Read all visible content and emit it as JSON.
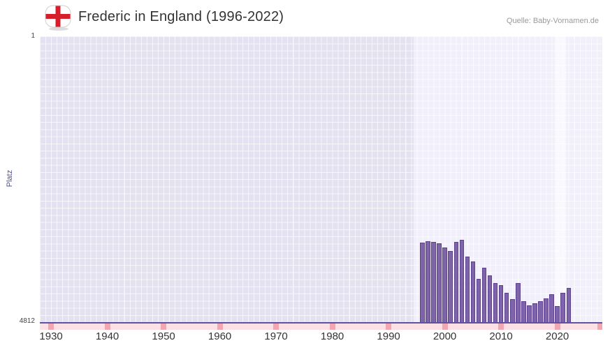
{
  "header": {
    "title": "Frederic in England (1996-2022)",
    "source": "Quelle: Baby-Vornamen.de"
  },
  "colors": {
    "flag_red": "#d5202c",
    "bar_fill": "#7f64aa",
    "bar_border": "#5b4190",
    "band_base": "#e4e2f0",
    "band_active": "#f1effa",
    "grid_line": "rgba(255,255,255,0.65)",
    "axis_line": "#5f51a3",
    "strip_bg": "#fbe0e6",
    "strip_mark": "#f2a6b2",
    "title_color": "#333333",
    "source_color": "#9a9a9a",
    "ylabel_color": "#4f4f93"
  },
  "chart_data": {
    "type": "bar",
    "title": "Frederic in England (1996-2022)",
    "source": "Quelle: Baby-Vornamen.de",
    "xlabel": "",
    "ylabel": "Platz",
    "legend": false,
    "grid": true,
    "y_axis": {
      "min": 1,
      "max": 4812,
      "inverted": true,
      "top_label": "1",
      "bottom_label": "4812"
    },
    "x_domain": [
      1928,
      2028
    ],
    "x_ticks": [
      1930,
      1940,
      1950,
      1960,
      1970,
      1980,
      1990,
      2000,
      2010,
      2020
    ],
    "active_period_band": {
      "from": 1994.5,
      "to": 2028
    },
    "recent_band": {
      "from": 2019.5,
      "to": 2021.5
    },
    "series": [
      {
        "name": "Platz",
        "data": [
          {
            "year": 1996,
            "rank": 3470
          },
          {
            "year": 1997,
            "rank": 3450
          },
          {
            "year": 1998,
            "rank": 3460
          },
          {
            "year": 1999,
            "rank": 3480
          },
          {
            "year": 2000,
            "rank": 3560
          },
          {
            "year": 2001,
            "rank": 3620
          },
          {
            "year": 2002,
            "rank": 3460
          },
          {
            "year": 2003,
            "rank": 3430
          },
          {
            "year": 2004,
            "rank": 3710
          },
          {
            "year": 2005,
            "rank": 3790
          },
          {
            "year": 2006,
            "rank": 4080
          },
          {
            "year": 2007,
            "rank": 3900
          },
          {
            "year": 2008,
            "rank": 4030
          },
          {
            "year": 2009,
            "rank": 4150
          },
          {
            "year": 2010,
            "rank": 4190
          },
          {
            "year": 2011,
            "rank": 4320
          },
          {
            "year": 2012,
            "rank": 4430
          },
          {
            "year": 2013,
            "rank": 4150
          },
          {
            "year": 2014,
            "rank": 4460
          },
          {
            "year": 2015,
            "rank": 4530
          },
          {
            "year": 2016,
            "rank": 4490
          },
          {
            "year": 2017,
            "rank": 4460
          },
          {
            "year": 2018,
            "rank": 4410
          },
          {
            "year": 2019,
            "rank": 4340
          },
          {
            "year": 2020,
            "rank": 4540
          },
          {
            "year": 2021,
            "rank": 4320
          },
          {
            "year": 2022,
            "rank": 4240
          }
        ]
      }
    ]
  }
}
